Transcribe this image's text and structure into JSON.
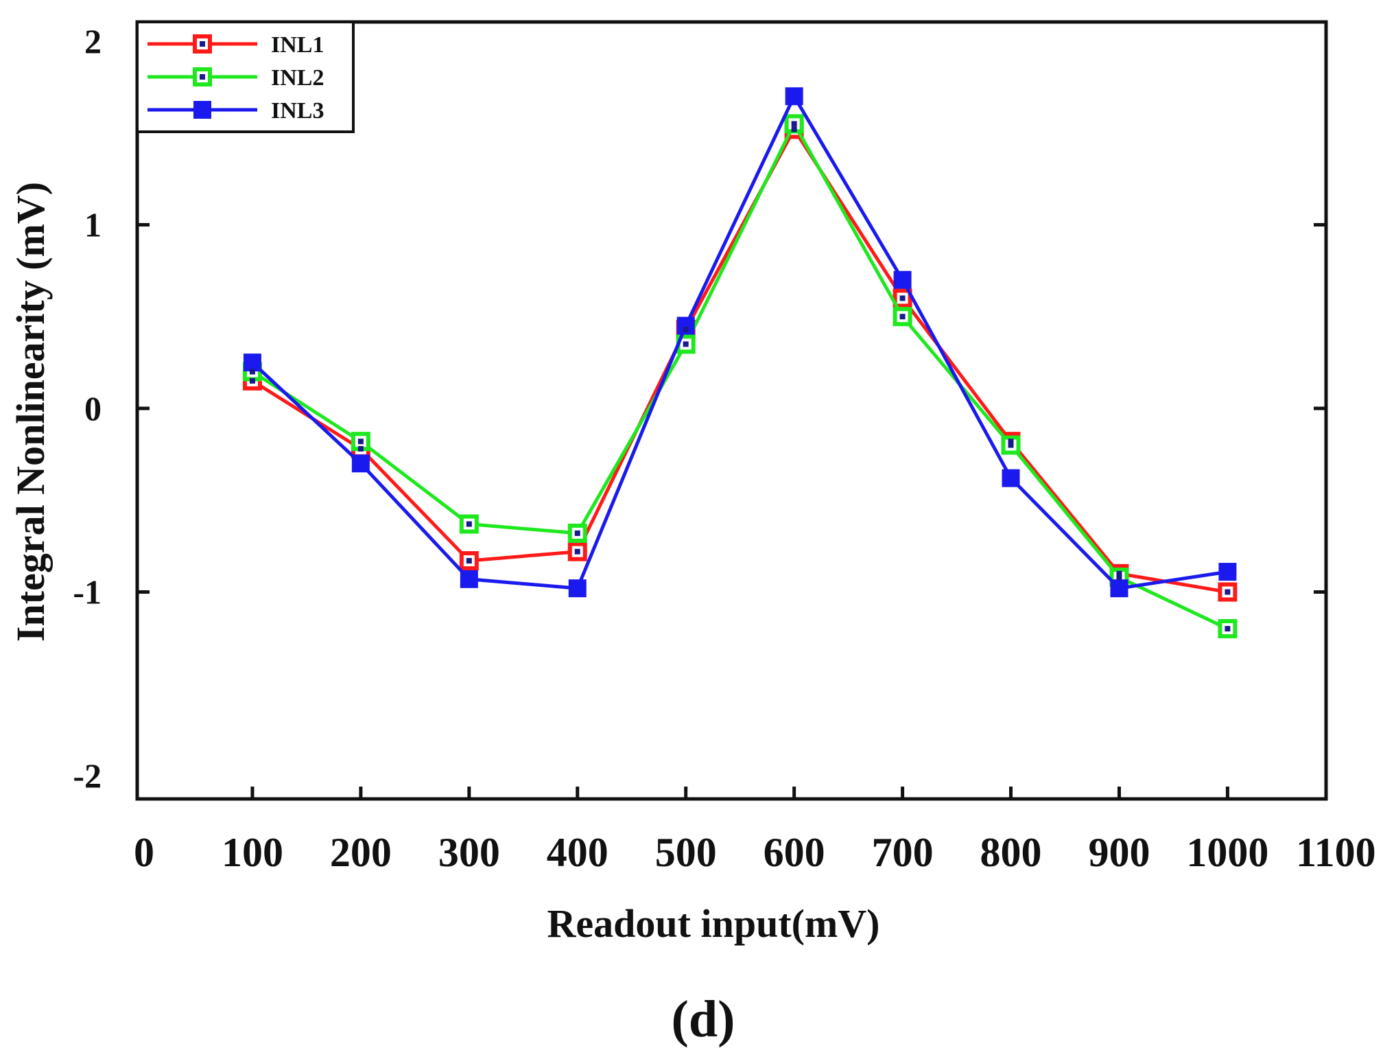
{
  "chart_data": {
    "type": "line",
    "title": "",
    "xlabel": "Readout input(mV)",
    "ylabel": "Integral Nonlinearity (mV)",
    "xlim": [
      0,
      1100
    ],
    "ylim": [
      -2,
      2
    ],
    "x_ticks": [
      "0",
      "100",
      "200",
      "300",
      "400",
      "500",
      "600",
      "700",
      "800",
      "900",
      "1000",
      "1100"
    ],
    "y_ticks": [
      "2",
      "1",
      "0",
      "-1",
      "-2"
    ],
    "x": [
      100,
      200,
      300,
      400,
      500,
      600,
      700,
      800,
      900,
      1000
    ],
    "series": [
      {
        "name": "INL1",
        "color": "#ff1a1a",
        "marker": "hollow-square",
        "values": [
          0.15,
          -0.22,
          -0.83,
          -0.78,
          0.43,
          1.52,
          0.6,
          -0.18,
          -0.9,
          -1.0
        ]
      },
      {
        "name": "INL2",
        "color": "#1ee81e",
        "marker": "hollow-square",
        "values": [
          0.2,
          -0.18,
          -0.63,
          -0.68,
          0.35,
          1.55,
          0.5,
          -0.2,
          -0.92,
          -1.2
        ]
      },
      {
        "name": "INL3",
        "color": "#1a1aee",
        "marker": "filled-square",
        "values": [
          0.25,
          -0.3,
          -0.93,
          -0.98,
          0.45,
          1.7,
          0.7,
          -0.38,
          -0.98,
          -0.89
        ]
      }
    ],
    "legend_position": "top-left",
    "grid": false
  },
  "panel_label": "(d)"
}
